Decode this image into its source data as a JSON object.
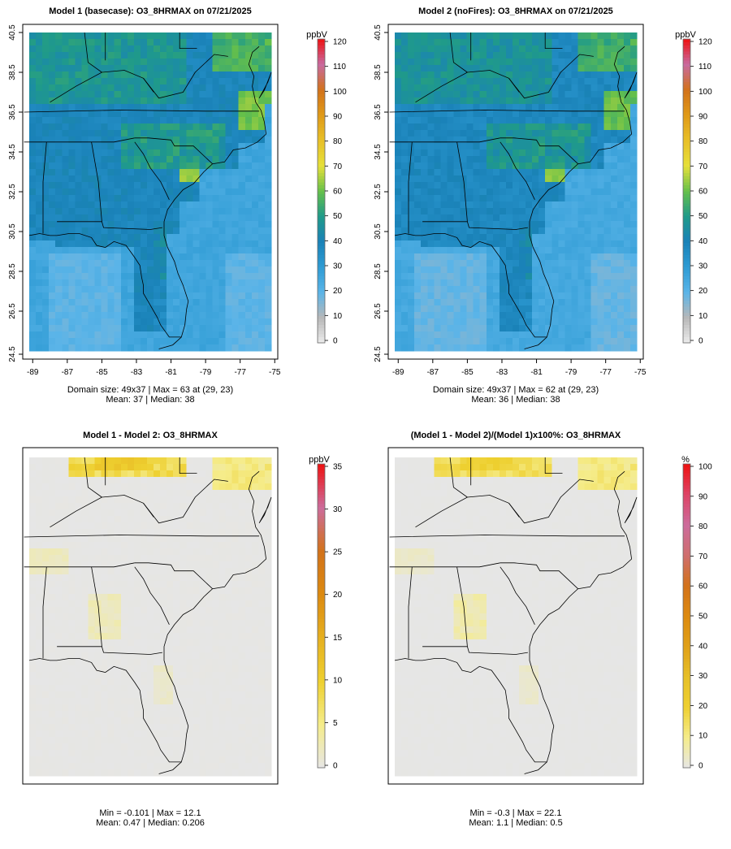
{
  "chart_data": [
    {
      "type": "heatmap",
      "title": "Model 1 (basecase): O3_8HRMAX on 07/21/2025",
      "xticks": [
        "-89",
        "-87",
        "-85",
        "-83",
        "-81",
        "-79",
        "-77",
        "-75"
      ],
      "yticks": [
        "24.5",
        "26.5",
        "28.5",
        "30.5",
        "32.5",
        "34.5",
        "36.5",
        "38.5",
        "40.5"
      ],
      "xlim": [
        -89,
        -75
      ],
      "ylim": [
        24.5,
        40.5
      ],
      "colorbar": {
        "unit": "ppbV",
        "min": 0,
        "max": 120,
        "ticks": [
          "0",
          "10",
          "20",
          "30",
          "40",
          "50",
          "60",
          "70",
          "80",
          "90",
          "100",
          "110",
          "120"
        ]
      },
      "stats": [
        "Domain size: 49x37 | Max = 63 at (29, 23)",
        "Mean: 37 |  Median: 38"
      ],
      "field": "o3"
    },
    {
      "type": "heatmap",
      "title": "Model 2 (noFires): O3_8HRMAX on 07/21/2025",
      "xticks": [
        "-89",
        "-87",
        "-85",
        "-83",
        "-81",
        "-79",
        "-77",
        "-75"
      ],
      "yticks": [
        "24.5",
        "26.5",
        "28.5",
        "30.5",
        "32.5",
        "34.5",
        "36.5",
        "38.5",
        "40.5"
      ],
      "xlim": [
        -89,
        -75
      ],
      "ylim": [
        24.5,
        40.5
      ],
      "colorbar": {
        "unit": "ppbV",
        "min": 0,
        "max": 120,
        "ticks": [
          "0",
          "10",
          "20",
          "30",
          "40",
          "50",
          "60",
          "70",
          "80",
          "90",
          "100",
          "110",
          "120"
        ]
      },
      "stats": [
        "Domain size: 49x37 | Max = 62 at (29, 23)",
        "Mean: 36 |  Median: 38"
      ],
      "field": "o3"
    },
    {
      "type": "heatmap",
      "title": "Model 1 - Model 2: O3_8HRMAX",
      "colorbar": {
        "unit": "ppbV",
        "min": 0,
        "max": 35,
        "ticks": [
          "0",
          "5",
          "10",
          "15",
          "20",
          "25",
          "30",
          "35"
        ]
      },
      "stats": [
        "Min = -0.101 | Max = 12.1",
        "Mean: 0.47 |  Median: 0.206"
      ],
      "field": "diff"
    },
    {
      "type": "heatmap",
      "title": "(Model 1 - Model 2)/(Model 1)x100%: O3_8HRMAX",
      "colorbar": {
        "unit": "%",
        "min": 0,
        "max": 100,
        "ticks": [
          "0",
          "10",
          "20",
          "30",
          "40",
          "50",
          "60",
          "70",
          "80",
          "90",
          "100"
        ]
      },
      "stats": [
        "Min = -0.3 | Max = 22.1",
        "Mean: 1.1 |  Median: 0.5"
      ],
      "field": "pct"
    }
  ]
}
